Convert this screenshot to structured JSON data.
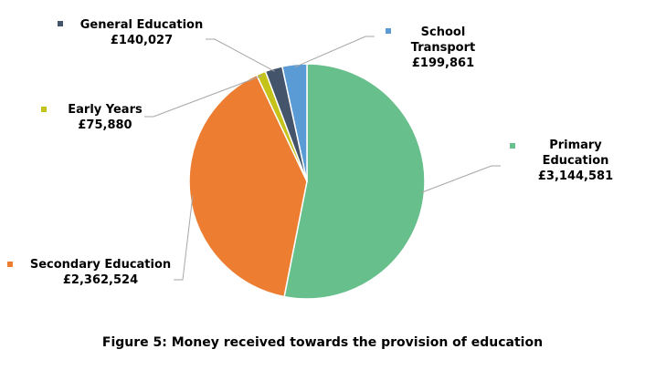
{
  "chart_data": {
    "type": "pie",
    "title": "Figure 5: Money received towards the provision of education",
    "categories": [
      "Primary Education",
      "Secondary Education",
      "Early Years",
      "General Education",
      "School Transport"
    ],
    "values": [
      3144581,
      2362524,
      75880,
      140027,
      199861
    ],
    "value_labels": [
      "£3,144,581",
      "£2,362,524",
      "£75,880",
      "£140,027",
      "£199,861"
    ],
    "colors": [
      "#67bf8c",
      "#ed7d31",
      "#c5c21a",
      "#44546a",
      "#5b9bd5"
    ]
  }
}
